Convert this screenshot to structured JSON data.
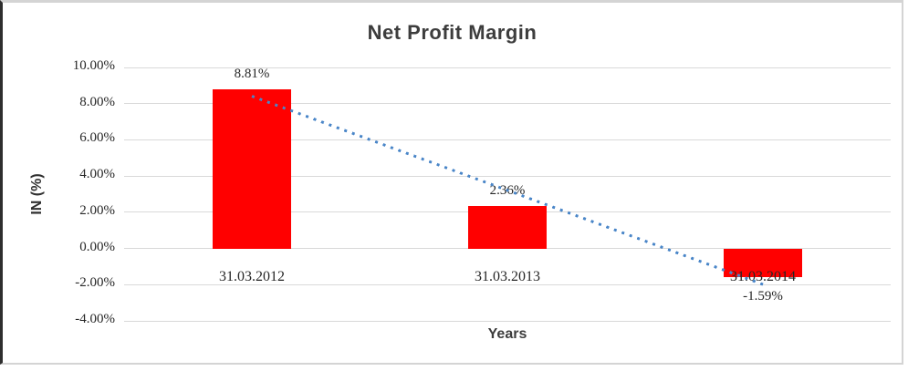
{
  "chart_data": {
    "type": "bar",
    "title": "Net Profit Margin",
    "categories": [
      "31.03.2012",
      "31.03.2013",
      "31.03.2014"
    ],
    "values": [
      8.81,
      2.36,
      -1.59
    ],
    "data_labels": [
      "8.81%",
      "2.36%",
      "-1.59%"
    ],
    "xlabel": "Years",
    "ylabel": "IN (%)",
    "ylim": [
      -4,
      10
    ],
    "ytick_step": 2,
    "ytick_labels": [
      "10.00%",
      "8.00%",
      "6.00%",
      "4.00%",
      "2.00%",
      "0.00%",
      "-2.00%",
      "-4.00%"
    ],
    "grid": true,
    "legend": "none",
    "bar_color": "#ff0000",
    "gridline_color": "#d9d9d9",
    "tick_text_color": "#262626",
    "title_color": "#3d3d3d",
    "trendline": {
      "type": "linear",
      "style": "dotted",
      "color": "#4a86c8",
      "spans": "bar1-center to bar3-center"
    }
  }
}
